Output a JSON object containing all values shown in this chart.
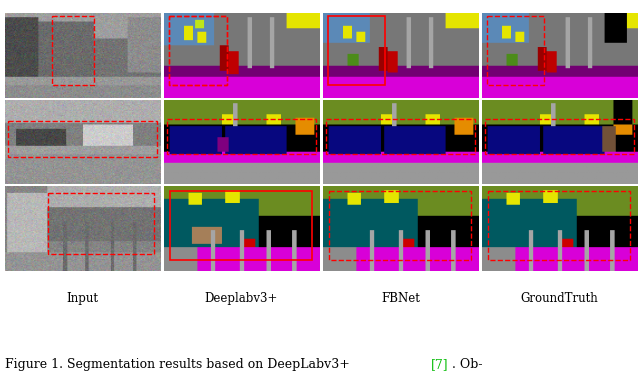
{
  "col_labels": [
    "Input",
    "Deeplabv3+",
    "FBNet",
    "GroundTruth"
  ],
  "col_label_fontsize": 8.5,
  "caption_fontsize": 9,
  "caption_ref_color": "#00bb00",
  "n_rows": 3,
  "n_cols": 4,
  "bg_color": "#ffffff",
  "figsize": [
    6.4,
    3.8
  ],
  "dpi": 100
}
